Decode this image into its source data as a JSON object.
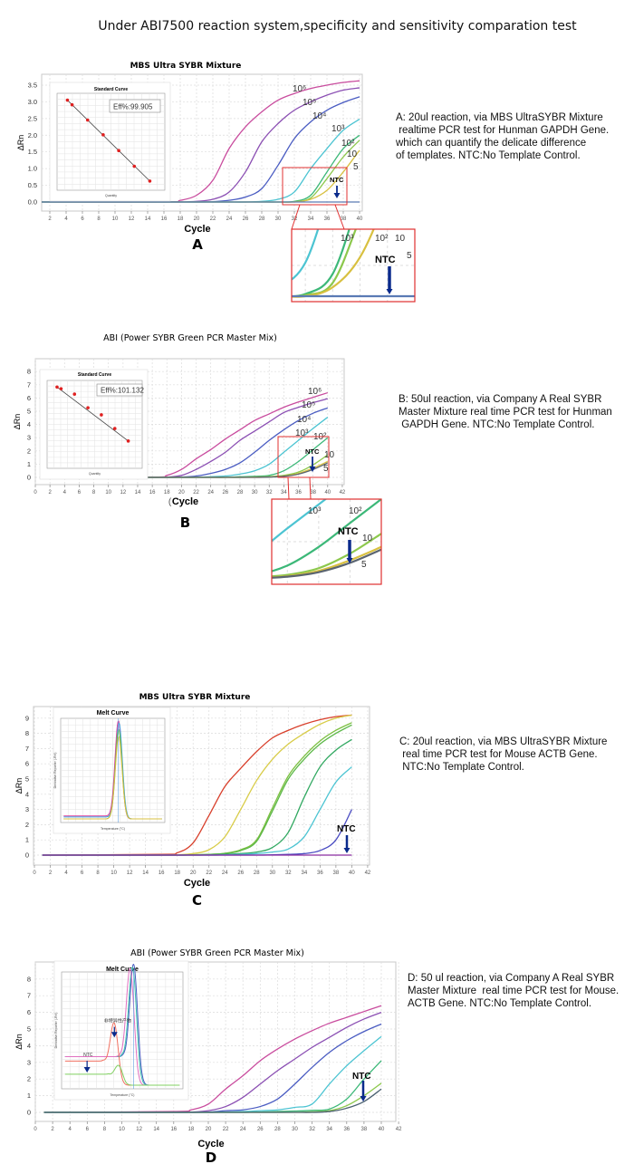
{
  "title": "Under ABI7500 reaction system,specificity and sensitivity comparation test",
  "panels": [
    {
      "letter": "A",
      "description": "A: 20ul reaction, via MBS UltraSYBR Mixture\n realtime PCR test for Hunman GAPDH Gene.\nwhich can quantify the delicate difference\nof templates. NTC:No Template Control."
    },
    {
      "letter": "B",
      "description": "B: 50ul reaction, via Company A Real SYBR\nMaster Mixture real time PCR test for Hunman\n GAPDH Gene. NTC:No Template Control."
    },
    {
      "letter": "C",
      "description": "C: 20ul reaction, via MBS UltraSYBR Mixture\n real time PCR test for Mouse ACTB Gene.\n NTC:No Template Control."
    },
    {
      "letter": "D",
      "description": "D: 50 ul reaction, via Company A Real SYBR\nMaster Mixture  real time PCR test for Mouse.\nACTB Gene. NTC:No Template Control."
    }
  ],
  "chart_data": [
    {
      "type": "line",
      "title": "MBS Ultra SYBR Mixture",
      "xlabel": "Cycle",
      "ylabel": "ΔRn",
      "xticks": [
        2,
        4,
        6,
        8,
        10,
        12,
        14,
        16,
        18,
        20,
        22,
        24,
        26,
        28,
        30,
        32,
        34,
        36,
        38,
        40
      ],
      "yticks": [
        "0.0",
        "0.5",
        "1.0",
        "1.5",
        "2.0",
        "2.5",
        "3.0",
        "3.5"
      ],
      "ylim": [
        0,
        3.5
      ],
      "grid": true,
      "x": [
        1,
        16,
        18,
        20,
        22,
        24,
        26,
        28,
        30,
        32,
        34,
        36,
        38,
        40
      ],
      "series": [
        {
          "name": "10⁶",
          "color": "#c94c9e",
          "values": [
            0,
            0,
            0.05,
            0.2,
            0.65,
            1.6,
            2.25,
            2.7,
            3.05,
            3.25,
            3.4,
            3.5,
            3.58,
            3.63
          ]
        },
        {
          "name": "10⁵",
          "color": "#8b4fb3",
          "values": [
            0,
            0,
            0,
            0.02,
            0.08,
            0.3,
            0.9,
            1.8,
            2.35,
            2.75,
            3.0,
            3.2,
            3.35,
            3.42
          ]
        },
        {
          "name": "10⁴",
          "color": "#4a5cc2",
          "values": [
            0,
            0,
            0,
            0,
            0.01,
            0.05,
            0.15,
            0.4,
            1.1,
            1.9,
            2.4,
            2.75,
            2.98,
            3.15
          ]
        },
        {
          "name": "10³",
          "color": "#4cc4d2",
          "values": [
            0,
            0,
            0,
            0,
            0,
            0,
            0,
            0.02,
            0.08,
            0.3,
            1.0,
            1.6,
            2.15,
            2.48
          ]
        },
        {
          "name": "10²",
          "color": "#3cb878",
          "values": [
            0,
            0,
            0,
            0,
            0,
            0,
            0,
            0,
            0,
            0.02,
            0.2,
            0.9,
            1.6,
            2.0
          ]
        },
        {
          "name": "10",
          "color": "#8cc84c",
          "values": [
            0,
            0,
            0,
            0,
            0,
            0,
            0,
            0,
            0,
            0.01,
            0.12,
            0.7,
            1.35,
            1.85
          ]
        },
        {
          "name": "5",
          "color": "#d8c040",
          "values": [
            0,
            0,
            0,
            0,
            0,
            0,
            0,
            0,
            0,
            0,
            0.08,
            0.35,
            0.9,
            1.55
          ]
        },
        {
          "name": "NTC",
          "color": "#5a7ab4",
          "values": [
            0,
            0,
            0,
            0,
            0,
            0,
            0,
            0,
            0,
            0,
            0,
            0,
            0,
            0
          ]
        }
      ],
      "inset": {
        "type": "scatter",
        "title": "Standard Curve",
        "xlabel": "Quantity",
        "annotation": "Eff%:99.905",
        "points": [
          [
            0.7,
            34.5
          ],
          [
            1,
            33.5
          ],
          [
            2,
            30.2
          ],
          [
            3,
            27
          ],
          [
            4,
            23.6
          ],
          [
            5,
            20.2
          ],
          [
            6,
            17
          ]
        ]
      },
      "ntc_label": "NTC"
    },
    {
      "type": "line",
      "title": "ABI (Power SYBR Green PCR Master Mix)",
      "xlabel": "Cycle",
      "xlabel_prefix": "(",
      "ylabel": "ΔRn",
      "xticks": [
        0,
        2,
        4,
        6,
        8,
        10,
        12,
        14,
        16,
        18,
        20,
        22,
        24,
        26,
        28,
        30,
        32,
        34,
        36,
        38,
        40,
        42
      ],
      "yticks": [
        "0",
        "1",
        "2",
        "3",
        "4",
        "5",
        "6",
        "7",
        "8"
      ],
      "ylim": [
        0,
        8
      ],
      "grid": true,
      "x": [
        1,
        16,
        18,
        20,
        22,
        24,
        26,
        28,
        30,
        32,
        34,
        36,
        38,
        40
      ],
      "series": [
        {
          "name": "10⁶",
          "color": "#c94c9e",
          "values": [
            0,
            0.02,
            0.15,
            0.6,
            1.4,
            2.1,
            2.9,
            3.6,
            4.3,
            4.8,
            5.3,
            5.7,
            6.05,
            6.4
          ]
        },
        {
          "name": "10⁵",
          "color": "#8b4fb3",
          "values": [
            0,
            0,
            0.02,
            0.15,
            0.6,
            1.2,
            1.9,
            2.8,
            3.5,
            4.2,
            4.9,
            5.3,
            5.65,
            5.95
          ]
        },
        {
          "name": "10⁴",
          "color": "#4a5cc2",
          "values": [
            0,
            0,
            0,
            0.02,
            0.1,
            0.3,
            0.6,
            1.1,
            1.9,
            2.8,
            3.6,
            4.3,
            4.85,
            5.25
          ]
        },
        {
          "name": "10³",
          "color": "#4cc4d2",
          "values": [
            0,
            0,
            0,
            0,
            0,
            0.05,
            0.1,
            0.25,
            0.5,
            1.0,
            1.9,
            2.8,
            3.7,
            4.55
          ]
        },
        {
          "name": "10²",
          "color": "#3cb878",
          "values": [
            0,
            0,
            0,
            0,
            0,
            0,
            0,
            0.05,
            0.08,
            0.15,
            0.5,
            1.2,
            2.1,
            3.0
          ]
        },
        {
          "name": "10",
          "color": "#8cc84c",
          "values": [
            0,
            0,
            0,
            0,
            0,
            0,
            0,
            0,
            0.03,
            0.06,
            0.15,
            0.4,
            0.95,
            1.7
          ]
        },
        {
          "name": "5",
          "color": "#d8c040",
          "values": [
            0,
            0,
            0,
            0,
            0,
            0,
            0,
            0,
            0,
            0.03,
            0.1,
            0.3,
            0.7,
            1.2
          ]
        },
        {
          "name": "NTC",
          "color": "#5a6470",
          "values": [
            0,
            0,
            0,
            0,
            0,
            0,
            0,
            0,
            0,
            0.02,
            0.08,
            0.25,
            0.6,
            1.1
          ]
        }
      ],
      "inset": {
        "type": "scatter",
        "title": "Standard Curve",
        "xlabel": "Quantity",
        "annotation": "Eff%:101.132",
        "points": [
          [
            0.7,
            34.5
          ],
          [
            1,
            34.1
          ],
          [
            2,
            32.8
          ],
          [
            3,
            29.5
          ],
          [
            4,
            27.8
          ],
          [
            5,
            24.5
          ],
          [
            6,
            21.5
          ]
        ]
      },
      "ntc_label": "NTC"
    },
    {
      "type": "line",
      "title": "MBS Ultra SYBR Mixture",
      "xlabel": "Cycle",
      "ylabel": "ΔRn",
      "xticks": [
        0,
        2,
        4,
        6,
        8,
        10,
        12,
        14,
        16,
        18,
        20,
        22,
        24,
        26,
        28,
        30,
        32,
        34,
        36,
        38,
        40,
        42
      ],
      "yticks": [
        "0",
        "1",
        "2",
        "3",
        "4",
        "5",
        "6",
        "7",
        "8",
        "9"
      ],
      "ylim": [
        0,
        9
      ],
      "grid": true,
      "x": [
        1,
        16,
        18,
        20,
        22,
        24,
        26,
        28,
        30,
        32,
        34,
        36,
        38,
        40
      ],
      "series": [
        {
          "color": "#d8402c",
          "values": [
            0,
            0.05,
            0.15,
            0.8,
            2.6,
            4.5,
            5.7,
            6.8,
            7.7,
            8.2,
            8.6,
            8.9,
            9.1,
            9.2
          ]
        },
        {
          "color": "#d8cc48",
          "values": [
            0,
            0,
            0.02,
            0.1,
            0.35,
            1.2,
            3.0,
            4.9,
            6.3,
            7.3,
            8.0,
            8.6,
            9.0,
            9.2
          ]
        },
        {
          "color": "#7cc040",
          "values": [
            0,
            0,
            0,
            0.02,
            0.05,
            0.12,
            0.35,
            1.0,
            3.1,
            5.2,
            6.5,
            7.5,
            8.2,
            8.7
          ]
        },
        {
          "color": "#5cb848",
          "values": [
            0,
            0,
            0,
            0.02,
            0.05,
            0.1,
            0.3,
            0.9,
            2.9,
            5.0,
            6.3,
            7.3,
            8.0,
            8.55
          ]
        },
        {
          "color": "#30a860",
          "values": [
            0,
            0,
            0,
            0,
            0.02,
            0.05,
            0.1,
            0.2,
            0.5,
            1.5,
            3.8,
            5.8,
            6.9,
            7.6
          ]
        },
        {
          "color": "#4cc4d2",
          "values": [
            0,
            0,
            0,
            0,
            0,
            0.02,
            0.05,
            0.1,
            0.2,
            0.4,
            1.2,
            3.0,
            4.8,
            5.8
          ]
        },
        {
          "color": "#4a4cc2",
          "values": [
            0,
            0,
            0,
            0,
            0,
            0,
            0,
            0,
            0.02,
            0.05,
            0.1,
            0.3,
            1.0,
            3.0
          ]
        },
        {
          "name": "NTC",
          "color": "#8a2ca0",
          "values": [
            0,
            0,
            0,
            0,
            0,
            0,
            0,
            0,
            0,
            0,
            0,
            0,
            0,
            0
          ]
        }
      ],
      "inset": {
        "type": "melt",
        "title": "Melt Curve",
        "xlabel": "Temperature (°C)",
        "ylabel": "Derivative Reporter (-Rn')",
        "xrange": [
          60,
          95
        ],
        "peaks": [
          {
            "color": "#e0409c",
            "tm": 79.4,
            "height": 1.0,
            "base": 0.03
          },
          {
            "color": "#40a0e0",
            "tm": 79.6,
            "height": 0.98,
            "base": 0.02
          },
          {
            "color": "#60c040",
            "tm": 79.5,
            "height": 0.92,
            "base": 0.0
          },
          {
            "color": "#d8c040",
            "tm": 79.5,
            "height": 0.85,
            "base": 0.0
          }
        ]
      },
      "ntc_label": "NTC"
    },
    {
      "type": "line",
      "title": "ABI (Power SYBR Green PCR Master Mix)",
      "xlabel": "Cycle",
      "ylabel": "ΔRn",
      "xticks": [
        0,
        2,
        4,
        6,
        8,
        10,
        12,
        14,
        16,
        18,
        20,
        22,
        24,
        26,
        28,
        30,
        32,
        34,
        36,
        38,
        40,
        42
      ],
      "yticks": [
        "0",
        "1",
        "2",
        "3",
        "4",
        "5",
        "6",
        "7",
        "8"
      ],
      "ylim": [
        0,
        8
      ],
      "grid": true,
      "x": [
        1,
        16,
        18,
        20,
        22,
        24,
        26,
        28,
        30,
        32,
        34,
        36,
        38,
        40
      ],
      "series": [
        {
          "color": "#c94c9e",
          "values": [
            0,
            0.05,
            0.15,
            0.5,
            1.4,
            2.2,
            3.1,
            3.8,
            4.4,
            4.9,
            5.35,
            5.7,
            6.05,
            6.4
          ]
        },
        {
          "color": "#8b4fb3",
          "values": [
            0,
            0,
            0.02,
            0.1,
            0.35,
            0.9,
            1.7,
            2.5,
            3.2,
            3.9,
            4.5,
            5.1,
            5.6,
            6.0
          ]
        },
        {
          "color": "#4a5cc2",
          "values": [
            0,
            0,
            0,
            0.02,
            0.1,
            0.15,
            0.35,
            0.8,
            1.7,
            2.7,
            3.6,
            4.3,
            4.85,
            5.3
          ]
        },
        {
          "color": "#4cc4d2",
          "values": [
            0,
            0,
            0,
            0,
            0.02,
            0.05,
            0.1,
            0.15,
            0.3,
            0.5,
            1.7,
            2.8,
            3.7,
            4.55
          ]
        },
        {
          "color": "#3cb878",
          "values": [
            0,
            0,
            0,
            0,
            0,
            0,
            0.02,
            0.05,
            0.08,
            0.12,
            0.2,
            0.8,
            2.0,
            3.1
          ]
        },
        {
          "color": "#8cc84c",
          "values": [
            0,
            0,
            0,
            0,
            0,
            0,
            0,
            0,
            0,
            0.03,
            0.1,
            0.4,
            1.0,
            1.75
          ]
        },
        {
          "name": "NTC",
          "color": "#4a6070",
          "values": [
            0,
            0,
            0,
            0,
            0,
            0,
            0,
            0,
            0,
            0,
            0.05,
            0.25,
            0.65,
            1.4
          ]
        }
      ],
      "inset": {
        "type": "melt",
        "title": "Melt Curve",
        "xlabel": "Temperature (°C)",
        "ylabel": "Derivative Reporter (-Rn')",
        "xrange": [
          60,
          95
        ],
        "annotation": "非特异性产物",
        "inner_label": "NTC",
        "peaks": [
          {
            "color": "#4a5cc2",
            "tm": 80.8,
            "height": 1.0,
            "base": 0.26
          },
          {
            "color": "#40c0b0",
            "tm": 80.5,
            "height": 0.97,
            "base": 0.26
          },
          {
            "color": "#e070c0",
            "tm": 79.8,
            "height": 0.96,
            "base": 0.26
          },
          {
            "color": "#f07060",
            "tm": 75.2,
            "height": 0.48,
            "base": 0.22
          },
          {
            "color": "#80d060",
            "tm": 76.5,
            "height": 0.14,
            "base": 0.1
          }
        ]
      },
      "ntc_label": "NTC"
    }
  ]
}
